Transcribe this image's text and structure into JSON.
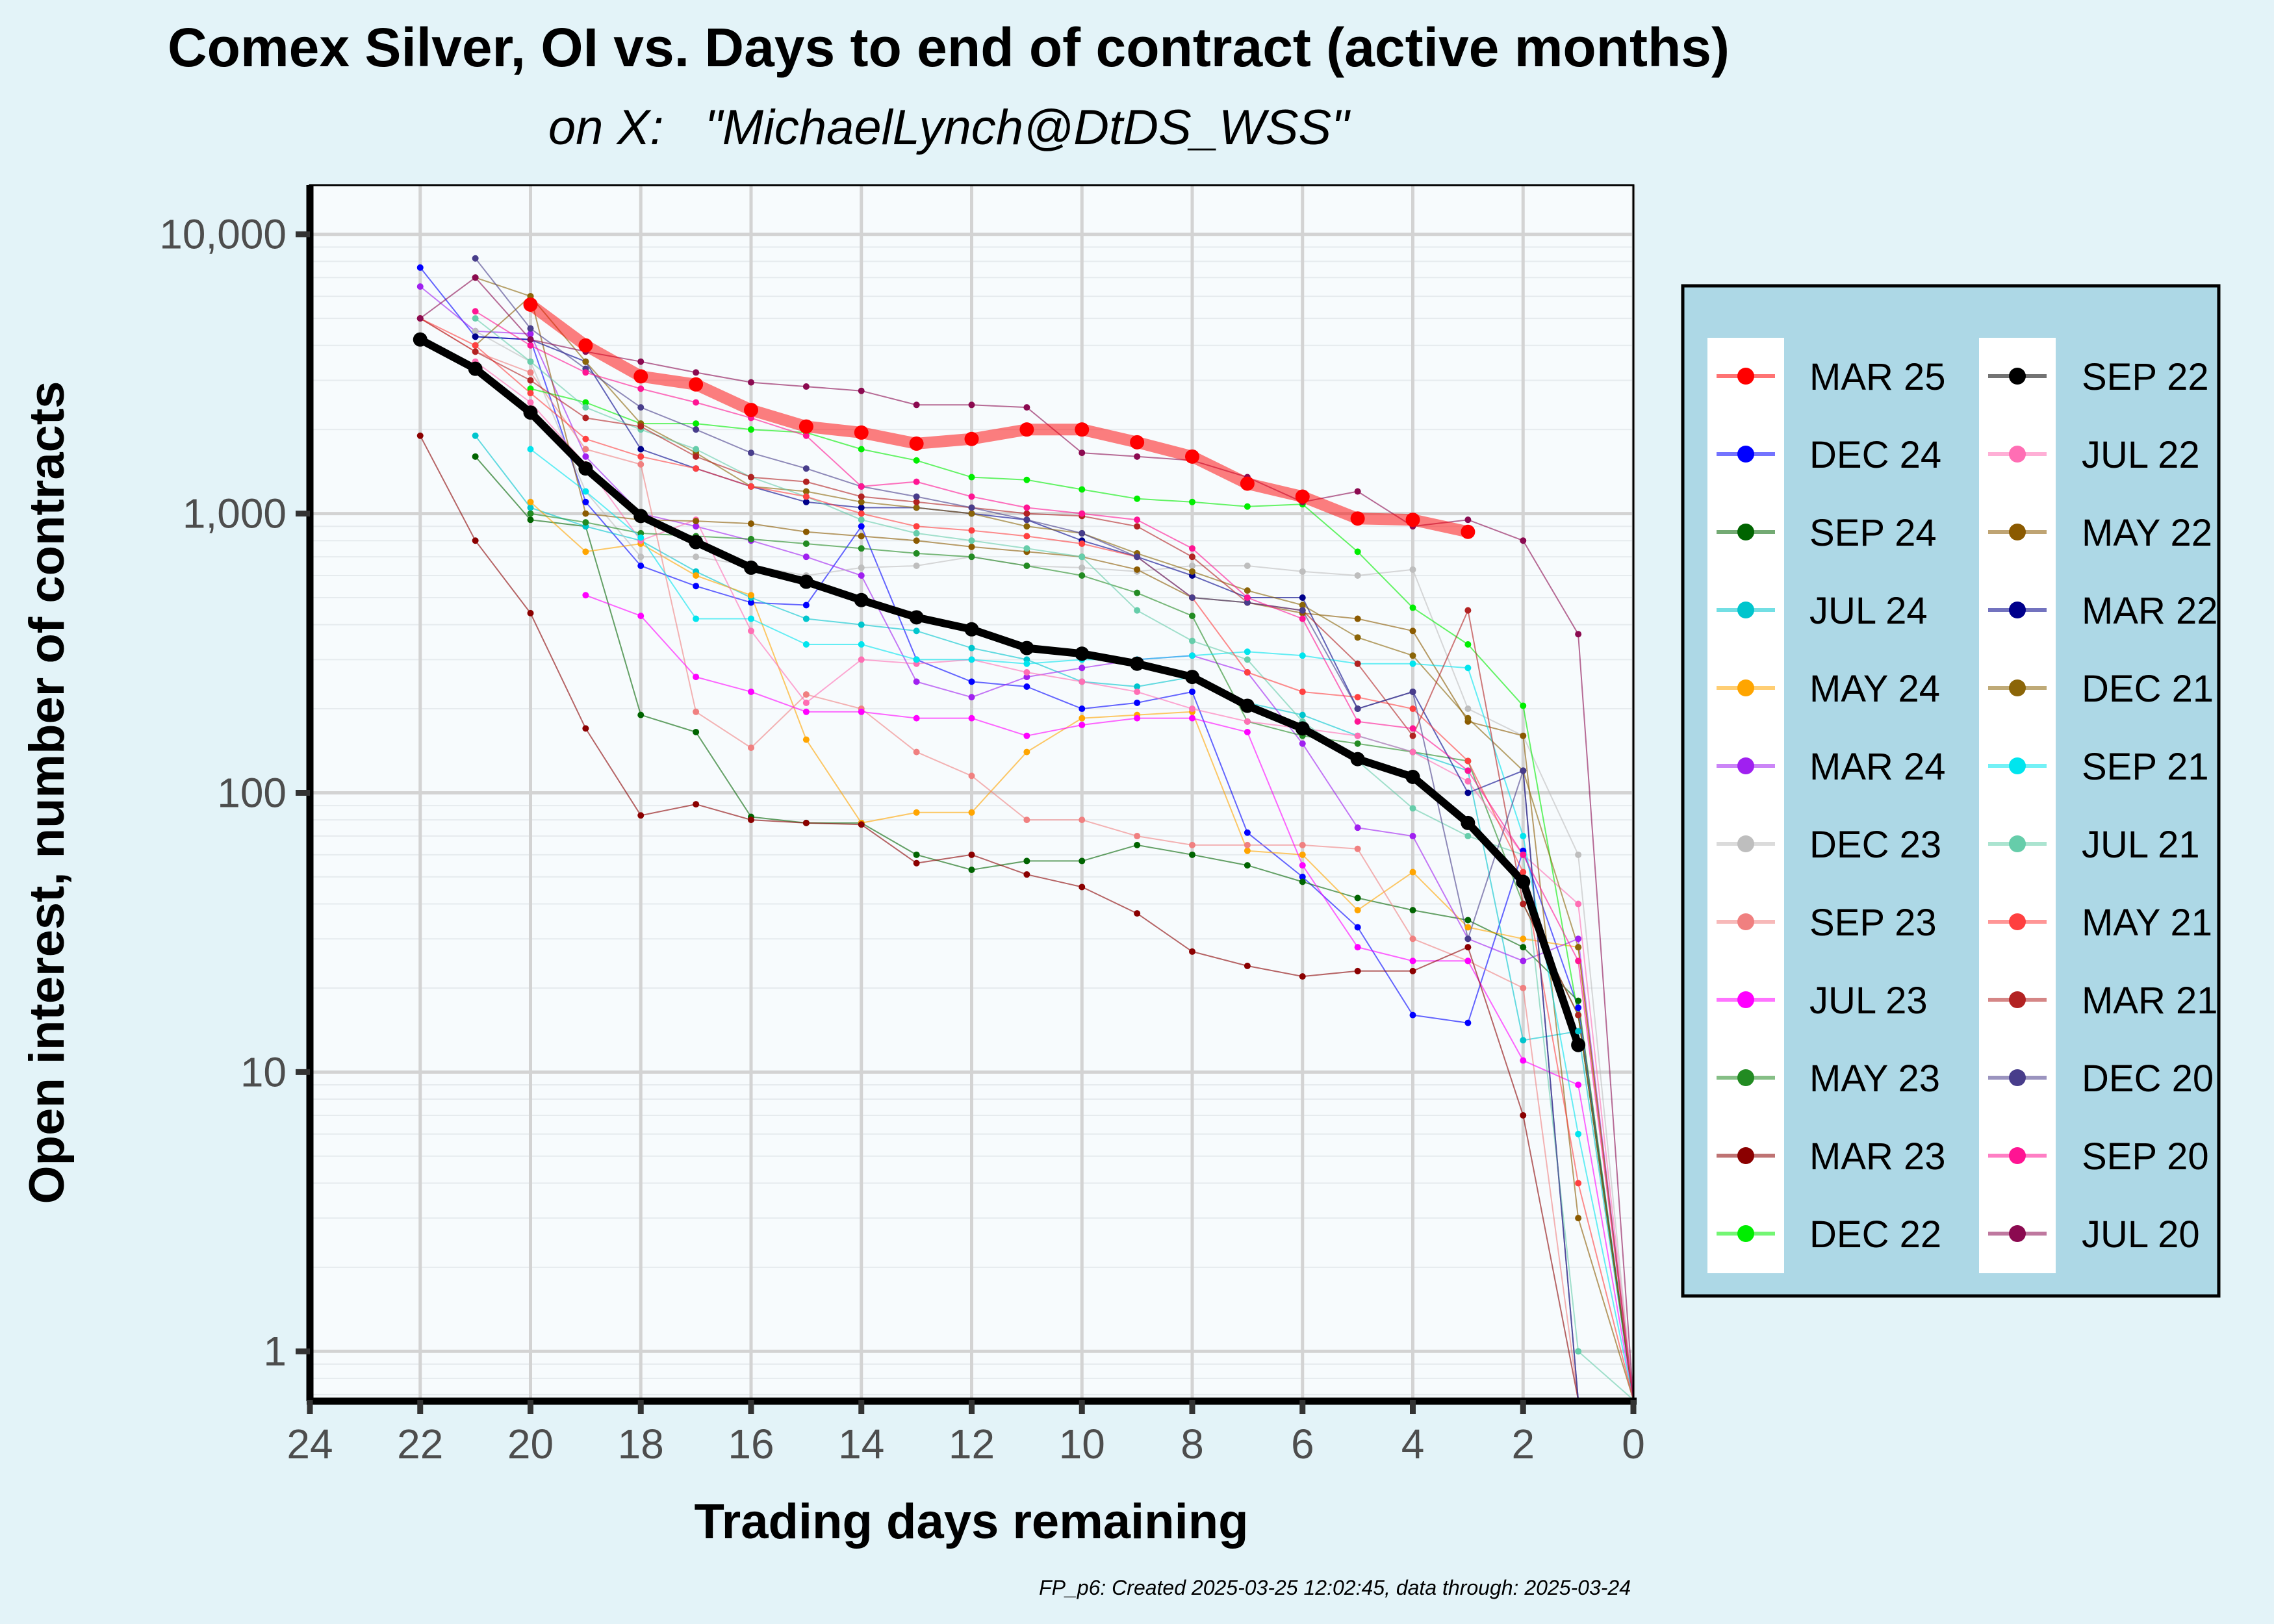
{
  "chart_data": {
    "type": "line",
    "title": "Comex Silver, OI vs. Days to end of contract (active months)",
    "subtitle": "on X:   \"MichaelLynch@DtDS_WSS\"",
    "xlabel": "Trading days remaining",
    "ylabel": "Open interest, number of contracts",
    "xlim": [
      24,
      0
    ],
    "ylim": [
      0.67,
      15000
    ],
    "yscale": "log",
    "x_ticks": [
      24,
      22,
      20,
      18,
      16,
      14,
      12,
      10,
      8,
      6,
      4,
      2,
      0
    ],
    "y_ticks": [
      {
        "value": 1,
        "label": "1"
      },
      {
        "value": 10,
        "label": "10"
      },
      {
        "value": 100,
        "label": "100"
      },
      {
        "value": 1000,
        "label": "1,000"
      },
      {
        "value": 10000,
        "label": "10,000"
      }
    ],
    "caption": "FP_p6: Created 2025-03-25 12:02:45, data through: 2025-03-24",
    "legend_position": "right",
    "series": [
      {
        "name": "MAR 25",
        "color": "#ff0000",
        "emphasis": "current",
        "x": [
          20,
          19,
          18,
          17,
          16,
          15,
          14,
          13,
          12,
          11,
          10,
          9,
          8,
          7,
          6,
          5,
          4,
          3
        ],
        "values": [
          5600,
          4000,
          3100,
          2900,
          2350,
          2050,
          1950,
          1780,
          1850,
          2000,
          2000,
          1800,
          1600,
          1280,
          1150,
          960,
          950,
          860
        ]
      },
      {
        "name": "DEC 24",
        "color": "#0000ff",
        "x": [
          22,
          21,
          20,
          19,
          18,
          17,
          16,
          15,
          14,
          13,
          12,
          11,
          10,
          9,
          8,
          7,
          6,
          5,
          4,
          3,
          2,
          1,
          0
        ],
        "values": [
          7600,
          4300,
          4200,
          1100,
          650,
          550,
          480,
          470,
          900,
          300,
          250,
          240,
          200,
          210,
          230,
          72,
          50,
          33,
          16,
          15,
          62,
          17,
          0.67
        ]
      },
      {
        "name": "SEP 24",
        "color": "#006400",
        "x": [
          21,
          20,
          19,
          18,
          17,
          16,
          15,
          14,
          13,
          12,
          11,
          10,
          9,
          8,
          7,
          6,
          5,
          4,
          3,
          2,
          1,
          0
        ],
        "values": [
          1600,
          950,
          900,
          190,
          165,
          82,
          78,
          78,
          60,
          53,
          57,
          57,
          65,
          60,
          55,
          48,
          42,
          38,
          35,
          28,
          18,
          0.67
        ]
      },
      {
        "name": "JUL 24",
        "color": "#00c5cd",
        "x": [
          21,
          20,
          19,
          18,
          17,
          16,
          15,
          14,
          13,
          12,
          11,
          10,
          9,
          8,
          7,
          6,
          5,
          4,
          3,
          2,
          1,
          0
        ],
        "values": [
          1900,
          1050,
          900,
          800,
          620,
          500,
          420,
          400,
          380,
          330,
          300,
          250,
          240,
          260,
          210,
          190,
          160,
          140,
          120,
          13,
          14,
          0.67
        ]
      },
      {
        "name": "MAY 24",
        "color": "#ffa500",
        "x": [
          20,
          19,
          18,
          17,
          16,
          15,
          14,
          13,
          12,
          11,
          10,
          9,
          8,
          7,
          6,
          5,
          4,
          3,
          2,
          1,
          0
        ],
        "values": [
          1100,
          730,
          780,
          600,
          510,
          155,
          78,
          85,
          85,
          140,
          185,
          190,
          195,
          62,
          60,
          38,
          52,
          33,
          30,
          28,
          0.67
        ]
      },
      {
        "name": "MAR 24",
        "color": "#a020f0",
        "x": [
          22,
          21,
          20,
          19,
          18,
          17,
          16,
          15,
          14,
          13,
          12,
          11,
          10,
          9,
          8,
          7,
          6,
          5,
          4,
          3,
          2,
          1,
          0
        ],
        "values": [
          6500,
          4500,
          4400,
          1600,
          1000,
          900,
          800,
          700,
          600,
          250,
          220,
          260,
          280,
          300,
          310,
          270,
          150,
          75,
          70,
          30,
          25,
          30,
          0.67
        ]
      },
      {
        "name": "DEC 23",
        "color": "#bebebe",
        "x": [
          21,
          20,
          19,
          18,
          17,
          16,
          15,
          14,
          13,
          12,
          11,
          10,
          9,
          8,
          7,
          6,
          5,
          4,
          3,
          2,
          1,
          0
        ],
        "values": [
          4500,
          3500,
          1200,
          700,
          700,
          650,
          600,
          640,
          650,
          700,
          650,
          640,
          620,
          650,
          650,
          620,
          600,
          630,
          200,
          160,
          60,
          0.67
        ]
      },
      {
        "name": "SEP 23",
        "color": "#f08080",
        "x": [
          22,
          21,
          20,
          19,
          18,
          17,
          16,
          15,
          14,
          13,
          12,
          11,
          10,
          9,
          8,
          7,
          6,
          5,
          4,
          3,
          2,
          1,
          0
        ],
        "values": [
          5000,
          3800,
          3200,
          1700,
          1500,
          195,
          145,
          225,
          200,
          140,
          115,
          80,
          80,
          70,
          65,
          65,
          65,
          63,
          30,
          25,
          20,
          0.67,
          0.67
        ]
      },
      {
        "name": "JUL 23",
        "color": "#ff00ff",
        "x": [
          19,
          18,
          17,
          16,
          15,
          14,
          13,
          12,
          11,
          10,
          9,
          8,
          7,
          6,
          5,
          4,
          3,
          2,
          1,
          0
        ],
        "values": [
          510,
          430,
          260,
          230,
          195,
          195,
          185,
          185,
          160,
          175,
          185,
          185,
          165,
          55,
          28,
          25,
          25,
          11,
          9,
          0.67
        ]
      },
      {
        "name": "MAY 23",
        "color": "#228b22",
        "x": [
          20,
          19,
          18,
          17,
          16,
          15,
          14,
          13,
          12,
          11,
          10,
          9,
          8,
          7,
          6,
          5,
          4,
          3,
          2,
          1,
          0
        ],
        "values": [
          1000,
          930,
          850,
          830,
          810,
          780,
          750,
          720,
          700,
          650,
          600,
          520,
          430,
          180,
          160,
          150,
          140,
          130,
          40,
          16,
          0.67
        ]
      },
      {
        "name": "MAR 23",
        "color": "#8b0000",
        "x": [
          22,
          21,
          20,
          19,
          18,
          17,
          16,
          15,
          14,
          13,
          12,
          11,
          10,
          9,
          8,
          7,
          6,
          5,
          4,
          3,
          2,
          1,
          0
        ],
        "values": [
          1900,
          800,
          440,
          170,
          83,
          91,
          80,
          78,
          77,
          56,
          60,
          51,
          46,
          37,
          27,
          24,
          22,
          23,
          23,
          28,
          7,
          0.67,
          0.67
        ]
      },
      {
        "name": "DEC 22",
        "color": "#00ee00",
        "x": [
          20,
          19,
          18,
          17,
          16,
          15,
          14,
          13,
          12,
          11,
          10,
          9,
          8,
          7,
          6,
          5,
          4,
          3,
          2,
          1,
          0
        ],
        "values": [
          2800,
          2500,
          2100,
          2100,
          2000,
          1950,
          1700,
          1550,
          1350,
          1320,
          1220,
          1130,
          1100,
          1060,
          1080,
          730,
          460,
          340,
          205,
          16,
          0.67
        ]
      },
      {
        "name": "SEP 22",
        "color": "#000000",
        "emphasis": "average",
        "x": [
          22,
          21,
          20,
          19,
          18,
          17,
          16,
          15,
          14,
          13,
          12,
          11,
          10,
          9,
          8,
          7,
          6,
          5,
          4,
          3,
          2,
          1
        ],
        "values": [
          4200,
          3300,
          2300,
          1450,
          980,
          790,
          640,
          570,
          490,
          425,
          385,
          330,
          315,
          290,
          260,
          205,
          170,
          132,
          114,
          78,
          48,
          12.5
        ]
      },
      {
        "name": "JUL 22",
        "color": "#ff6eb4",
        "x": [
          21,
          20,
          19,
          18,
          17,
          16,
          15,
          14,
          13,
          12,
          11,
          10,
          9,
          8,
          7,
          6,
          5,
          4,
          3,
          2,
          1,
          0
        ],
        "values": [
          3500,
          2500,
          1500,
          800,
          950,
          380,
          210,
          300,
          290,
          300,
          270,
          250,
          230,
          200,
          180,
          170,
          160,
          140,
          110,
          60,
          40,
          0.67
        ]
      },
      {
        "name": "MAY 22",
        "color": "#8b5a00",
        "x": [
          21,
          20,
          19,
          18,
          17,
          16,
          15,
          14,
          13,
          12,
          11,
          10,
          9,
          8,
          7,
          6,
          5,
          4,
          3,
          2,
          1,
          0
        ],
        "values": [
          4000,
          6000,
          1000,
          950,
          940,
          920,
          860,
          830,
          800,
          760,
          730,
          700,
          630,
          500,
          480,
          440,
          420,
          380,
          180,
          160,
          3,
          0.67
        ]
      },
      {
        "name": "MAR 22",
        "color": "#00008b",
        "x": [
          21,
          20,
          19,
          18,
          17,
          16,
          15,
          14,
          13,
          12,
          11,
          10,
          9,
          8,
          7,
          6,
          5,
          4,
          3,
          2,
          1,
          0
        ],
        "values": [
          4300,
          4200,
          3500,
          1700,
          1450,
          1250,
          1100,
          1050,
          1050,
          1000,
          950,
          800,
          700,
          600,
          500,
          500,
          200,
          230,
          100,
          120,
          0.67,
          0.67
        ]
      },
      {
        "name": "DEC 21",
        "color": "#8b6508",
        "x": [
          21,
          20,
          19,
          18,
          17,
          16,
          15,
          14,
          13,
          12,
          11,
          10,
          9,
          8,
          7,
          6,
          5,
          4,
          3,
          2,
          1,
          0
        ],
        "values": [
          7000,
          6000,
          3500,
          2100,
          1650,
          1250,
          1200,
          1100,
          1050,
          1000,
          900,
          850,
          720,
          620,
          530,
          470,
          360,
          310,
          185,
          120,
          28,
          0.67
        ]
      },
      {
        "name": "SEP 21",
        "color": "#00e5ee",
        "x": [
          20,
          19,
          18,
          17,
          16,
          15,
          14,
          13,
          12,
          11,
          10,
          9,
          8,
          7,
          6,
          5,
          4,
          3,
          2,
          1,
          0
        ],
        "values": [
          1700,
          1200,
          820,
          420,
          420,
          340,
          340,
          300,
          300,
          290,
          300,
          300,
          310,
          320,
          310,
          290,
          290,
          280,
          70,
          6,
          0.67
        ]
      },
      {
        "name": "JUL 21",
        "color": "#66cdaa",
        "x": [
          21,
          20,
          19,
          18,
          17,
          16,
          15,
          14,
          13,
          12,
          11,
          10,
          9,
          8,
          7,
          6,
          5,
          4,
          3,
          2,
          1,
          0
        ],
        "values": [
          5000,
          3500,
          2400,
          2000,
          1700,
          1350,
          1150,
          950,
          850,
          800,
          750,
          700,
          450,
          350,
          300,
          180,
          130,
          88,
          70,
          60,
          1,
          0.67
        ]
      },
      {
        "name": "MAY 21",
        "color": "#ff4040",
        "x": [
          22,
          21,
          20,
          19,
          18,
          17,
          16,
          15,
          14,
          13,
          12,
          11,
          10,
          9,
          8,
          7,
          6,
          5,
          4,
          3,
          2,
          1,
          0
        ],
        "values": [
          5000,
          4000,
          2700,
          1850,
          1600,
          1450,
          1250,
          1150,
          1000,
          900,
          870,
          830,
          780,
          700,
          500,
          270,
          230,
          220,
          200,
          130,
          52,
          4,
          0.67
        ]
      },
      {
        "name": "MAR 21",
        "color": "#b22222",
        "x": [
          22,
          21,
          20,
          19,
          18,
          17,
          16,
          15,
          14,
          13,
          12,
          11,
          10,
          9,
          8,
          7,
          6,
          5,
          4,
          3,
          2,
          1,
          0
        ],
        "values": [
          5000,
          3800,
          3000,
          2200,
          2050,
          1600,
          1350,
          1300,
          1150,
          1100,
          1050,
          1000,
          980,
          900,
          700,
          480,
          450,
          290,
          160,
          450,
          40,
          16,
          0.67
        ]
      },
      {
        "name": "DEC 20",
        "color": "#483d8b",
        "x": [
          21,
          20,
          19,
          18,
          17,
          16,
          15,
          14,
          13,
          12,
          11,
          10,
          9,
          8,
          7,
          6,
          5,
          4,
          3,
          2,
          1,
          0
        ],
        "values": [
          8200,
          4600,
          3300,
          2400,
          2000,
          1650,
          1450,
          1250,
          1150,
          1050,
          950,
          850,
          700,
          500,
          480,
          450,
          200,
          230,
          30,
          120,
          0.67,
          0.67
        ]
      },
      {
        "name": "SEP 20",
        "color": "#ff1493",
        "x": [
          21,
          20,
          19,
          18,
          17,
          16,
          15,
          14,
          13,
          12,
          11,
          10,
          9,
          8,
          7,
          6,
          5,
          4,
          3,
          2,
          1,
          0
        ],
        "values": [
          5300,
          4000,
          3200,
          2800,
          2500,
          2200,
          1900,
          1250,
          1300,
          1150,
          1050,
          1000,
          950,
          750,
          500,
          420,
          180,
          170,
          120,
          60,
          25,
          0.67
        ]
      },
      {
        "name": "JUL 20",
        "color": "#8b0a50",
        "x": [
          22,
          21,
          20,
          19,
          18,
          17,
          16,
          15,
          14,
          13,
          12,
          11,
          10,
          9,
          8,
          7,
          6,
          5,
          4,
          3,
          2,
          1,
          0
        ],
        "values": [
          5000,
          7000,
          4200,
          3800,
          3500,
          3200,
          2950,
          2850,
          2750,
          2450,
          2450,
          2400,
          1650,
          1600,
          1550,
          1350,
          1100,
          1200,
          900,
          950,
          800,
          370,
          0.67
        ]
      }
    ]
  }
}
